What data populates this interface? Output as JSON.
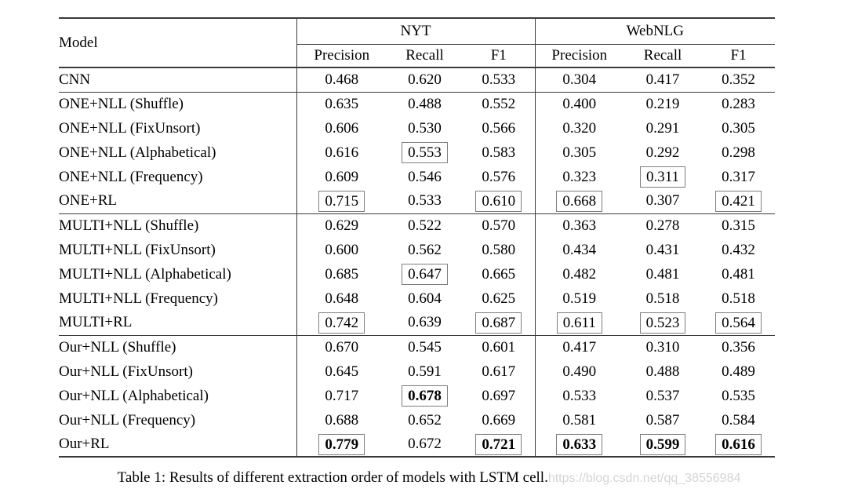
{
  "table": {
    "header": {
      "model_label": "Model",
      "groups": [
        {
          "label": "NYT",
          "columns": [
            "Precision",
            "Recall",
            "F1"
          ]
        },
        {
          "label": "WebNLG",
          "columns": [
            "Precision",
            "Recall",
            "F1"
          ]
        }
      ]
    },
    "rows": [
      {
        "label": "CNN",
        "section_start": false,
        "values": [
          {
            "v": "0.468",
            "boxed": false,
            "bold": false
          },
          {
            "v": "0.620",
            "boxed": false,
            "bold": false
          },
          {
            "v": "0.533",
            "boxed": false,
            "bold": false
          },
          {
            "v": "0.304",
            "boxed": false,
            "bold": false
          },
          {
            "v": "0.417",
            "boxed": false,
            "bold": false
          },
          {
            "v": "0.352",
            "boxed": false,
            "bold": false
          }
        ]
      },
      {
        "label": "ONE+NLL (Shuffle)",
        "section_start": true,
        "values": [
          {
            "v": "0.635",
            "boxed": false,
            "bold": false
          },
          {
            "v": "0.488",
            "boxed": false,
            "bold": false
          },
          {
            "v": "0.552",
            "boxed": false,
            "bold": false
          },
          {
            "v": "0.400",
            "boxed": false,
            "bold": false
          },
          {
            "v": "0.219",
            "boxed": false,
            "bold": false
          },
          {
            "v": "0.283",
            "boxed": false,
            "bold": false
          }
        ]
      },
      {
        "label": "ONE+NLL (FixUnsort)",
        "section_start": false,
        "values": [
          {
            "v": "0.606",
            "boxed": false,
            "bold": false
          },
          {
            "v": "0.530",
            "boxed": false,
            "bold": false
          },
          {
            "v": "0.566",
            "boxed": false,
            "bold": false
          },
          {
            "v": "0.320",
            "boxed": false,
            "bold": false
          },
          {
            "v": "0.291",
            "boxed": false,
            "bold": false
          },
          {
            "v": "0.305",
            "boxed": false,
            "bold": false
          }
        ]
      },
      {
        "label": "ONE+NLL (Alphabetical)",
        "section_start": false,
        "values": [
          {
            "v": "0.616",
            "boxed": false,
            "bold": false
          },
          {
            "v": "0.553",
            "boxed": true,
            "bold": false
          },
          {
            "v": "0.583",
            "boxed": false,
            "bold": false
          },
          {
            "v": "0.305",
            "boxed": false,
            "bold": false
          },
          {
            "v": "0.292",
            "boxed": false,
            "bold": false
          },
          {
            "v": "0.298",
            "boxed": false,
            "bold": false
          }
        ]
      },
      {
        "label": "ONE+NLL (Frequency)",
        "section_start": false,
        "values": [
          {
            "v": "0.609",
            "boxed": false,
            "bold": false
          },
          {
            "v": "0.546",
            "boxed": false,
            "bold": false
          },
          {
            "v": "0.576",
            "boxed": false,
            "bold": false
          },
          {
            "v": "0.323",
            "boxed": false,
            "bold": false
          },
          {
            "v": "0.311",
            "boxed": true,
            "bold": false
          },
          {
            "v": "0.317",
            "boxed": false,
            "bold": false
          }
        ]
      },
      {
        "label": "ONE+RL",
        "section_start": false,
        "values": [
          {
            "v": "0.715",
            "boxed": true,
            "bold": false
          },
          {
            "v": "0.533",
            "boxed": false,
            "bold": false
          },
          {
            "v": "0.610",
            "boxed": true,
            "bold": false
          },
          {
            "v": "0.668",
            "boxed": true,
            "bold": false
          },
          {
            "v": "0.307",
            "boxed": false,
            "bold": false
          },
          {
            "v": "0.421",
            "boxed": true,
            "bold": false
          }
        ]
      },
      {
        "label": "MULTI+NLL (Shuffle)",
        "section_start": true,
        "values": [
          {
            "v": "0.629",
            "boxed": false,
            "bold": false
          },
          {
            "v": "0.522",
            "boxed": false,
            "bold": false
          },
          {
            "v": "0.570",
            "boxed": false,
            "bold": false
          },
          {
            "v": "0.363",
            "boxed": false,
            "bold": false
          },
          {
            "v": "0.278",
            "boxed": false,
            "bold": false
          },
          {
            "v": "0.315",
            "boxed": false,
            "bold": false
          }
        ]
      },
      {
        "label": "MULTI+NLL (FixUnsort)",
        "section_start": false,
        "values": [
          {
            "v": "0.600",
            "boxed": false,
            "bold": false
          },
          {
            "v": "0.562",
            "boxed": false,
            "bold": false
          },
          {
            "v": "0.580",
            "boxed": false,
            "bold": false
          },
          {
            "v": "0.434",
            "boxed": false,
            "bold": false
          },
          {
            "v": "0.431",
            "boxed": false,
            "bold": false
          },
          {
            "v": "0.432",
            "boxed": false,
            "bold": false
          }
        ]
      },
      {
        "label": "MULTI+NLL (Alphabetical)",
        "section_start": false,
        "values": [
          {
            "v": "0.685",
            "boxed": false,
            "bold": false
          },
          {
            "v": "0.647",
            "boxed": true,
            "bold": false
          },
          {
            "v": "0.665",
            "boxed": false,
            "bold": false
          },
          {
            "v": "0.482",
            "boxed": false,
            "bold": false
          },
          {
            "v": "0.481",
            "boxed": false,
            "bold": false
          },
          {
            "v": "0.481",
            "boxed": false,
            "bold": false
          }
        ]
      },
      {
        "label": "MULTI+NLL (Frequency)",
        "section_start": false,
        "values": [
          {
            "v": "0.648",
            "boxed": false,
            "bold": false
          },
          {
            "v": "0.604",
            "boxed": false,
            "bold": false
          },
          {
            "v": "0.625",
            "boxed": false,
            "bold": false
          },
          {
            "v": "0.519",
            "boxed": false,
            "bold": false
          },
          {
            "v": "0.518",
            "boxed": false,
            "bold": false
          },
          {
            "v": "0.518",
            "boxed": false,
            "bold": false
          }
        ]
      },
      {
        "label": "MULTI+RL",
        "section_start": false,
        "values": [
          {
            "v": "0.742",
            "boxed": true,
            "bold": false
          },
          {
            "v": "0.639",
            "boxed": false,
            "bold": false
          },
          {
            "v": "0.687",
            "boxed": true,
            "bold": false
          },
          {
            "v": "0.611",
            "boxed": true,
            "bold": false
          },
          {
            "v": "0.523",
            "boxed": true,
            "bold": false
          },
          {
            "v": "0.564",
            "boxed": true,
            "bold": false
          }
        ]
      },
      {
        "label": "Our+NLL (Shuffle)",
        "section_start": true,
        "values": [
          {
            "v": "0.670",
            "boxed": false,
            "bold": false
          },
          {
            "v": "0.545",
            "boxed": false,
            "bold": false
          },
          {
            "v": "0.601",
            "boxed": false,
            "bold": false
          },
          {
            "v": "0.417",
            "boxed": false,
            "bold": false
          },
          {
            "v": "0.310",
            "boxed": false,
            "bold": false
          },
          {
            "v": "0.356",
            "boxed": false,
            "bold": false
          }
        ]
      },
      {
        "label": "Our+NLL (FixUnsort)",
        "section_start": false,
        "values": [
          {
            "v": "0.645",
            "boxed": false,
            "bold": false
          },
          {
            "v": "0.591",
            "boxed": false,
            "bold": false
          },
          {
            "v": "0.617",
            "boxed": false,
            "bold": false
          },
          {
            "v": "0.490",
            "boxed": false,
            "bold": false
          },
          {
            "v": "0.488",
            "boxed": false,
            "bold": false
          },
          {
            "v": "0.489",
            "boxed": false,
            "bold": false
          }
        ]
      },
      {
        "label": "Our+NLL (Alphabetical)",
        "section_start": false,
        "values": [
          {
            "v": "0.717",
            "boxed": false,
            "bold": false
          },
          {
            "v": "0.678",
            "boxed": true,
            "bold": true
          },
          {
            "v": "0.697",
            "boxed": false,
            "bold": false
          },
          {
            "v": "0.533",
            "boxed": false,
            "bold": false
          },
          {
            "v": "0.537",
            "boxed": false,
            "bold": false
          },
          {
            "v": "0.535",
            "boxed": false,
            "bold": false
          }
        ]
      },
      {
        "label": "Our+NLL (Frequency)",
        "section_start": false,
        "values": [
          {
            "v": "0.688",
            "boxed": false,
            "bold": false
          },
          {
            "v": "0.652",
            "boxed": false,
            "bold": false
          },
          {
            "v": "0.669",
            "boxed": false,
            "bold": false
          },
          {
            "v": "0.581",
            "boxed": false,
            "bold": false
          },
          {
            "v": "0.587",
            "boxed": false,
            "bold": false
          },
          {
            "v": "0.584",
            "boxed": false,
            "bold": false
          }
        ]
      },
      {
        "label": "Our+RL",
        "section_start": false,
        "values": [
          {
            "v": "0.779",
            "boxed": true,
            "bold": true
          },
          {
            "v": "0.672",
            "boxed": false,
            "bold": false
          },
          {
            "v": "0.721",
            "boxed": true,
            "bold": true
          },
          {
            "v": "0.633",
            "boxed": true,
            "bold": true
          },
          {
            "v": "0.599",
            "boxed": true,
            "bold": true
          },
          {
            "v": "0.616",
            "boxed": true,
            "bold": true
          }
        ]
      }
    ]
  },
  "caption": {
    "text": "Table 1: Results of different extraction order of models with LSTM cell.",
    "watermark": "https://blog.csdn.net/qq_38556984"
  }
}
